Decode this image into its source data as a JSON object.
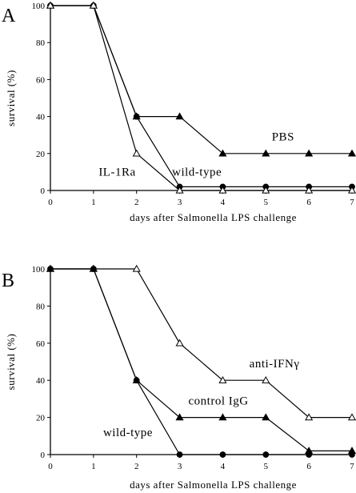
{
  "chart_data": [
    {
      "type": "line",
      "panel_label": "A",
      "xlabel": "days after Salmonella LPS challenge",
      "ylabel": "survival (%)",
      "xlim": [
        0,
        7
      ],
      "ylim": [
        0,
        100
      ],
      "xticks": [
        0,
        1,
        2,
        3,
        4,
        5,
        6,
        7
      ],
      "yticks": [
        0,
        20,
        40,
        60,
        80,
        100
      ],
      "grid": false,
      "series": [
        {
          "marker": "filled-triangle",
          "x": [
            0,
            1,
            2,
            3,
            4,
            5,
            6,
            7
          ],
          "values": [
            100,
            100,
            40,
            40,
            20,
            20,
            20,
            20
          ]
        },
        {
          "marker": "filled-circle",
          "x": [
            0,
            1,
            2,
            3,
            4,
            5,
            6,
            7
          ],
          "values": [
            100,
            100,
            40,
            2,
            2,
            2,
            2,
            2
          ]
        },
        {
          "marker": "open-triangle",
          "x": [
            0,
            1,
            2,
            3,
            4,
            5,
            6,
            7
          ],
          "values": [
            100,
            100,
            20,
            0,
            0,
            0,
            0,
            0
          ]
        }
      ],
      "annotations": [
        {
          "text": "PBS",
          "x": 5.4,
          "y": 27
        },
        {
          "text": "IL-1Ra",
          "x": 1.55,
          "y": 8
        },
        {
          "text": "wild-type",
          "x": 3.4,
          "y": 8
        }
      ]
    },
    {
      "type": "line",
      "panel_label": "B",
      "xlabel": "days after Salmonella LPS challenge",
      "ylabel": "survival (%)",
      "xlim": [
        0,
        7
      ],
      "ylim": [
        0,
        100
      ],
      "xticks": [
        0,
        1,
        2,
        3,
        4,
        5,
        6,
        7
      ],
      "yticks": [
        0,
        20,
        40,
        60,
        80,
        100
      ],
      "grid": false,
      "series": [
        {
          "marker": "open-triangle",
          "x": [
            0,
            1,
            2,
            3,
            4,
            5,
            6,
            7
          ],
          "values": [
            100,
            100,
            100,
            60,
            40,
            40,
            20,
            20
          ]
        },
        {
          "marker": "filled-triangle",
          "x": [
            0,
            1,
            2,
            3,
            4,
            5,
            6,
            7
          ],
          "values": [
            100,
            100,
            40,
            20,
            20,
            20,
            2,
            2
          ]
        },
        {
          "marker": "filled-circle",
          "x": [
            0,
            1,
            2,
            3,
            4,
            5,
            6,
            7
          ],
          "values": [
            100,
            100,
            40,
            0,
            0,
            0,
            0,
            0
          ]
        }
      ],
      "annotations": [
        {
          "text": "anti-IFNγ",
          "x": 5.2,
          "y": 47
        },
        {
          "text": "control IgG",
          "x": 3.9,
          "y": 27
        },
        {
          "text": "wild-type",
          "x": 1.8,
          "y": 10
        }
      ]
    }
  ]
}
